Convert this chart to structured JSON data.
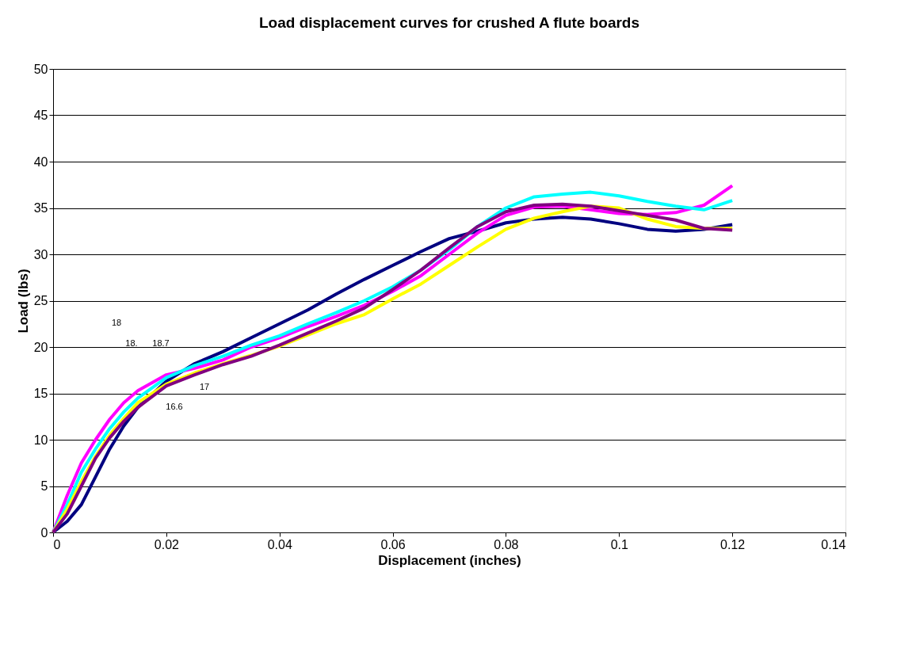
{
  "chart_data": {
    "type": "line",
    "title": "Load displacement curves for crushed A flute boards",
    "xlabel": "Displacement (inches)",
    "ylabel": "Load (lbs)",
    "x": [
      0,
      0.0025,
      0.005,
      0.0075,
      0.01,
      0.0125,
      0.015,
      0.02,
      0.025,
      0.03,
      0.035,
      0.04,
      0.045,
      0.05,
      0.055,
      0.06,
      0.065,
      0.07,
      0.075,
      0.08,
      0.085,
      0.09,
      0.095,
      0.1,
      0.105,
      0.11,
      0.115,
      0.12
    ],
    "series": [
      {
        "color": "#000080",
        "values": [
          0,
          1.2,
          3,
          6,
          9,
          11.5,
          13.5,
          16.3,
          18.2,
          19.5,
          21,
          22.5,
          24,
          25.7,
          27.3,
          28.8,
          30.3,
          31.7,
          32.5,
          33.4,
          33.8,
          34,
          33.8,
          33.3,
          32.7,
          32.5,
          32.7,
          33.2
        ]
      },
      {
        "color": "#ff00ff",
        "values": [
          0,
          4,
          7.5,
          10,
          12.2,
          14,
          15.3,
          17,
          17.7,
          18.6,
          20,
          21,
          22.2,
          23.3,
          24.5,
          26,
          27.7,
          30,
          32.3,
          34.2,
          35.1,
          35.2,
          34.8,
          34.4,
          34.3,
          34.5,
          35.3,
          37.4
        ]
      },
      {
        "color": "#00ffff",
        "values": [
          0,
          3,
          6.5,
          9,
          11.2,
          13,
          14.5,
          16.7,
          18,
          19,
          20.2,
          21.2,
          22.5,
          23.7,
          25,
          26.5,
          28.3,
          30.5,
          33,
          35,
          36.2,
          36.5,
          36.7,
          36.3,
          35.7,
          35.2,
          34.8,
          35.8
        ]
      },
      {
        "color": "#ffff00",
        "values": [
          0,
          2.5,
          5.5,
          8.2,
          10.5,
          12.3,
          14,
          16,
          17.2,
          18.2,
          19.1,
          20.1,
          21.3,
          22.5,
          23.5,
          25.2,
          26.8,
          28.8,
          30.8,
          32.7,
          33.9,
          34.6,
          35.2,
          35,
          33.8,
          33,
          32.8,
          32.8
        ]
      },
      {
        "color": "#800080",
        "values": [
          0,
          2,
          5,
          8,
          10.2,
          12,
          13.5,
          15.8,
          17,
          18.1,
          19,
          20.2,
          21.5,
          22.8,
          24.2,
          26.2,
          28.3,
          30.7,
          33,
          34.6,
          35.3,
          35.4,
          35.2,
          34.7,
          34.2,
          33.7,
          32.8,
          32.6
        ]
      }
    ],
    "annotations": [
      "18",
      "18.",
      "18.7",
      "17",
      "16.6"
    ],
    "xlim": [
      0,
      0.14
    ],
    "xticks": [
      0,
      0.02,
      0.04,
      0.06,
      0.08,
      0.1,
      0.12,
      0.14
    ],
    "ylim": [
      0,
      50
    ],
    "yticks": [
      0,
      5,
      10,
      15,
      20,
      25,
      30,
      35,
      40,
      45,
      50
    ],
    "grid": "y",
    "legend": false,
    "marker": "none",
    "line_style": "solid"
  }
}
